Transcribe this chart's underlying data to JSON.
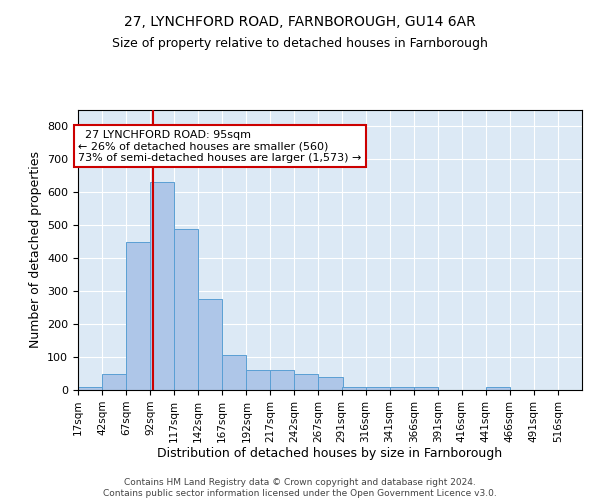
{
  "title1": "27, LYNCHFORD ROAD, FARNBOROUGH, GU14 6AR",
  "title2": "Size of property relative to detached houses in Farnborough",
  "xlabel": "Distribution of detached houses by size in Farnborough",
  "ylabel": "Number of detached properties",
  "footer1": "Contains HM Land Registry data © Crown copyright and database right 2024.",
  "footer2": "Contains public sector information licensed under the Open Government Licence v3.0.",
  "annotation_line1": "27 LYNCHFORD ROAD: 95sqm",
  "annotation_line2": "← 26% of detached houses are smaller (560)",
  "annotation_line3": "73% of semi-detached houses are larger (1,573) →",
  "bar_color": "#aec6e8",
  "bar_edge_color": "#5a9fd4",
  "vline_color": "#cc0000",
  "bg_color": "#dce9f5",
  "bins": [
    17,
    42,
    67,
    92,
    117,
    142,
    167,
    192,
    217,
    242,
    267,
    291,
    316,
    341,
    366,
    391,
    416,
    441,
    466,
    491,
    516,
    541
  ],
  "values": [
    10,
    50,
    450,
    630,
    490,
    275,
    105,
    60,
    60,
    50,
    40,
    10,
    10,
    10,
    10,
    0,
    0,
    10,
    0,
    0,
    0
  ],
  "property_size": 95,
  "ylim": [
    0,
    850
  ],
  "yticks": [
    0,
    100,
    200,
    300,
    400,
    500,
    600,
    700,
    800
  ]
}
